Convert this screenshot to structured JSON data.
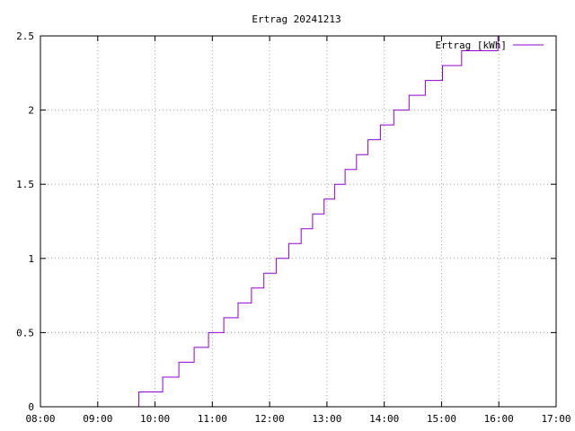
{
  "chart_data": {
    "type": "line",
    "title": "Ertrag 20241213",
    "xlabel": "",
    "ylabel": "",
    "x_axis": {
      "type": "time",
      "range": [
        "08:00",
        "17:00"
      ],
      "ticks": [
        "08:00",
        "09:00",
        "10:00",
        "11:00",
        "12:00",
        "13:00",
        "14:00",
        "15:00",
        "16:00",
        "17:00"
      ]
    },
    "y_axis": {
      "range": [
        0,
        2.5
      ],
      "ticks": [
        "0",
        "0.5",
        "1",
        "1.5",
        "2",
        "2.5"
      ]
    },
    "grid": true,
    "legend": {
      "position": "top-right"
    },
    "series": [
      {
        "name": "Ertrag [kWh]",
        "color": "#9400d3",
        "step": "post",
        "points": [
          [
            "09:43",
            0.0
          ],
          [
            "09:43",
            0.1
          ],
          [
            "10:08",
            0.1
          ],
          [
            "10:08",
            0.2
          ],
          [
            "10:25",
            0.2
          ],
          [
            "10:25",
            0.3
          ],
          [
            "10:41",
            0.3
          ],
          [
            "10:41",
            0.4
          ],
          [
            "10:56",
            0.4
          ],
          [
            "10:56",
            0.5
          ],
          [
            "11:12",
            0.5
          ],
          [
            "11:12",
            0.6
          ],
          [
            "11:27",
            0.6
          ],
          [
            "11:27",
            0.7
          ],
          [
            "11:41",
            0.7
          ],
          [
            "11:41",
            0.8
          ],
          [
            "11:54",
            0.8
          ],
          [
            "11:54",
            0.9
          ],
          [
            "12:07",
            0.9
          ],
          [
            "12:07",
            1.0
          ],
          [
            "12:20",
            1.0
          ],
          [
            "12:20",
            1.1
          ],
          [
            "12:33",
            1.1
          ],
          [
            "12:33",
            1.2
          ],
          [
            "12:45",
            1.2
          ],
          [
            "12:45",
            1.3
          ],
          [
            "12:57",
            1.3
          ],
          [
            "12:57",
            1.4
          ],
          [
            "13:08",
            1.4
          ],
          [
            "13:08",
            1.5
          ],
          [
            "13:19",
            1.5
          ],
          [
            "13:19",
            1.6
          ],
          [
            "13:31",
            1.6
          ],
          [
            "13:31",
            1.7
          ],
          [
            "13:43",
            1.7
          ],
          [
            "13:43",
            1.8
          ],
          [
            "13:56",
            1.8
          ],
          [
            "13:56",
            1.9
          ],
          [
            "14:10",
            1.9
          ],
          [
            "14:10",
            2.0
          ],
          [
            "14:26",
            2.0
          ],
          [
            "14:26",
            2.1
          ],
          [
            "14:43",
            2.1
          ],
          [
            "14:43",
            2.2
          ],
          [
            "15:01",
            2.2
          ],
          [
            "15:01",
            2.3
          ],
          [
            "15:21",
            2.3
          ],
          [
            "15:21",
            2.4
          ],
          [
            "15:59",
            2.4
          ],
          [
            "15:59",
            2.5
          ]
        ]
      }
    ]
  }
}
